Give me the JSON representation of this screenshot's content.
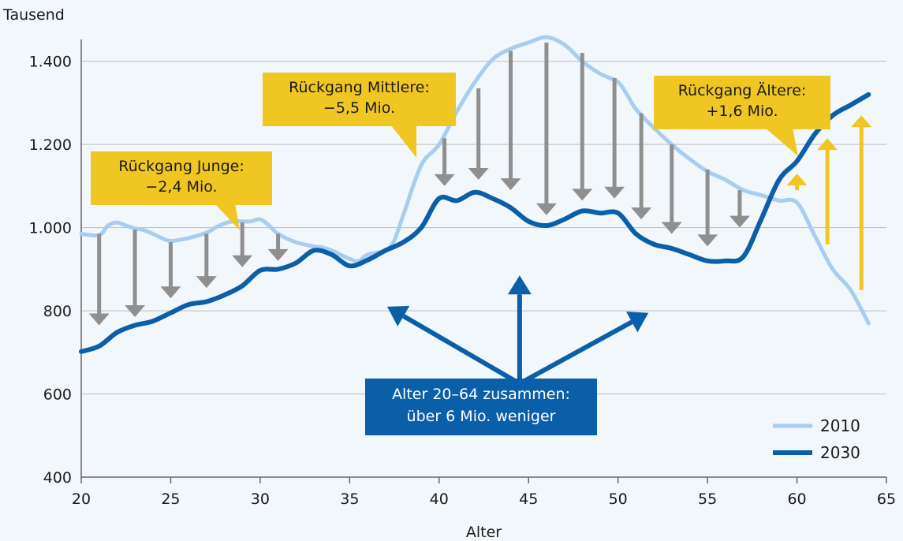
{
  "chart_data": {
    "type": "line",
    "ylabel": "Tausend",
    "xlabel": "Alter",
    "xlim": [
      20,
      65
    ],
    "ylim": [
      400,
      1500
    ],
    "xticks": [
      20,
      25,
      30,
      35,
      40,
      45,
      50,
      55,
      60,
      65
    ],
    "yticks": [
      400,
      600,
      800,
      1000,
      1200,
      1400
    ],
    "ytick_labels": [
      "400",
      "600",
      "800",
      "1.000",
      "1.200",
      "1.400"
    ],
    "grid": "horizontal",
    "legend_position": "bottom-right",
    "series": [
      {
        "name": "2010",
        "color": "#a8cdee",
        "x": [
          20,
          21,
          21.5,
          22,
          22.5,
          23,
          23.5,
          24,
          24.5,
          25,
          26,
          27,
          27.5,
          28,
          28.5,
          29,
          29.5,
          30,
          30.5,
          31,
          32,
          33,
          33.5,
          34,
          35,
          35.5,
          36,
          37,
          37.5,
          38,
          39,
          40,
          41,
          42,
          43,
          44,
          45,
          46,
          47,
          48,
          49,
          50,
          50.5,
          51,
          52,
          53,
          54,
          55,
          56,
          57,
          58,
          59,
          60,
          61,
          62,
          63,
          64
        ],
        "y": [
          985,
          982,
          1005,
          1012,
          1005,
          998,
          994,
          985,
          975,
          968,
          975,
          988,
          1000,
          1010,
          1015,
          1015,
          1015,
          1020,
          1005,
          985,
          965,
          955,
          952,
          945,
          925,
          920,
          935,
          945,
          970,
          1030,
          1150,
          1200,
          1280,
          1350,
          1405,
          1430,
          1445,
          1458,
          1440,
          1400,
          1370,
          1350,
          1320,
          1285,
          1240,
          1200,
          1165,
          1135,
          1115,
          1090,
          1078,
          1065,
          1060,
          980,
          900,
          850,
          770
        ]
      },
      {
        "name": "2030",
        "color": "#0b5ea8",
        "x": [
          20,
          21,
          22,
          23,
          24,
          25,
          26,
          27,
          28,
          29,
          30,
          31,
          32,
          33,
          34,
          35,
          36,
          37,
          38,
          39,
          40,
          41,
          42,
          43,
          44,
          45,
          46,
          47,
          48,
          49,
          50,
          51,
          52,
          53,
          54,
          55,
          56,
          57,
          58,
          59,
          60,
          61,
          62,
          63,
          64
        ],
        "y": [
          702,
          715,
          748,
          765,
          775,
          795,
          815,
          822,
          838,
          860,
          897,
          900,
          915,
          945,
          935,
          908,
          922,
          945,
          965,
          1000,
          1070,
          1065,
          1085,
          1070,
          1048,
          1015,
          1005,
          1020,
          1040,
          1035,
          1035,
          985,
          960,
          950,
          935,
          920,
          920,
          930,
          1020,
          1115,
          1160,
          1225,
          1270,
          1295,
          1320
        ]
      }
    ],
    "arrows_down": [
      {
        "x": 21,
        "from": 985,
        "to": 765
      },
      {
        "x": 23,
        "from": 995,
        "to": 785
      },
      {
        "x": 25,
        "from": 965,
        "to": 830
      },
      {
        "x": 27,
        "from": 985,
        "to": 855
      },
      {
        "x": 29,
        "from": 1012,
        "to": 905
      },
      {
        "x": 31,
        "from": 985,
        "to": 920
      },
      {
        "x": 40.3,
        "from": 1215,
        "to": 1100
      },
      {
        "x": 42.2,
        "from": 1335,
        "to": 1115
      },
      {
        "x": 44,
        "from": 1425,
        "to": 1090
      },
      {
        "x": 46,
        "from": 1445,
        "to": 1030
      },
      {
        "x": 48,
        "from": 1420,
        "to": 1065
      },
      {
        "x": 49.8,
        "from": 1360,
        "to": 1070
      },
      {
        "x": 51.3,
        "from": 1275,
        "to": 1020
      },
      {
        "x": 53,
        "from": 1200,
        "to": 985
      },
      {
        "x": 55,
        "from": 1140,
        "to": 955
      },
      {
        "x": 56.8,
        "from": 1090,
        "to": 1000
      }
    ],
    "arrows_up": [
      {
        "x": 60,
        "from": 1090,
        "to": 1130
      },
      {
        "x": 61.7,
        "from": 960,
        "to": 1215
      },
      {
        "x": 63.6,
        "from": 850,
        "to": 1270
      }
    ],
    "blue_arrows": {
      "origin": [
        44.5,
        625
      ],
      "tips": [
        [
          37.1,
          810
        ],
        [
          44.5,
          885
        ],
        [
          51.7,
          795
        ]
      ]
    },
    "annotations": {
      "junge": [
        "Rückgang Junge:",
        "−2,4 Mio."
      ],
      "mittlere": [
        "Rückgang Mittlere:",
        "−5,5 Mio."
      ],
      "aeltere": [
        "Rückgang Ältere:",
        "+1,6 Mio."
      ],
      "gesamt": [
        "Alter 20–64 zusammen:",
        "über 6 Mio. weniger"
      ]
    },
    "colors": {
      "arrow_gray": "#8f8f8f",
      "arrow_yellow": "#f0c623",
      "callout_yellow": "#f0c623",
      "blue": "#0b5ea8",
      "light_blue": "#a8cdee"
    }
  }
}
